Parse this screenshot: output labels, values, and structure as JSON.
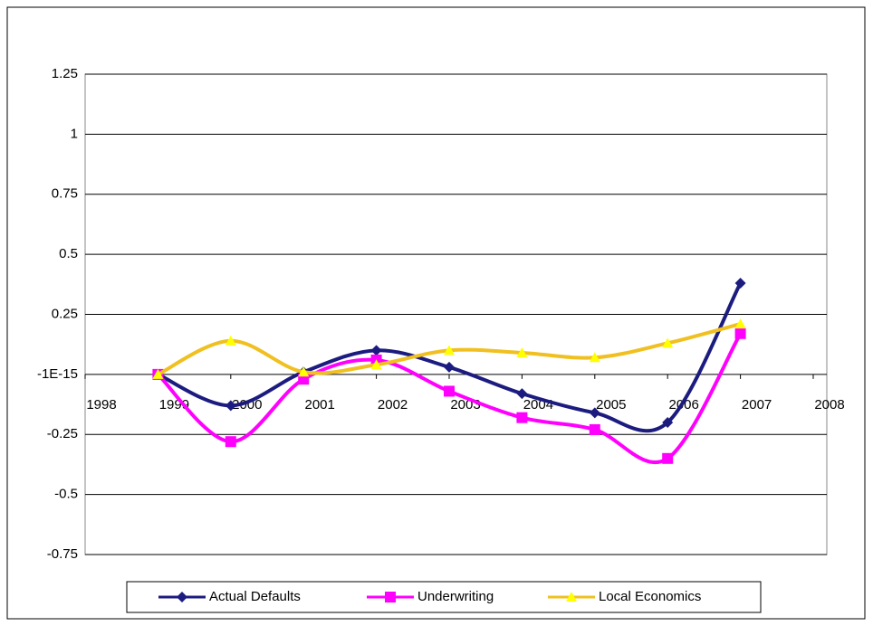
{
  "chart_data": {
    "type": "line",
    "x": [
      1999,
      2000,
      2001,
      2002,
      2003,
      2004,
      2005,
      2006,
      2007
    ],
    "series": [
      {
        "name": "Actual Defaults",
        "color": "#1c1c80",
        "marker": "diamond",
        "values": [
          0,
          -0.13,
          0.01,
          0.1,
          0.03,
          -0.08,
          -0.16,
          -0.2,
          0.38
        ]
      },
      {
        "name": "Underwriting",
        "color": "#ff00ff",
        "marker": "square",
        "values": [
          0,
          -0.28,
          -0.02,
          0.06,
          -0.07,
          -0.18,
          -0.23,
          -0.35,
          0.17
        ]
      },
      {
        "name": "Local Economics",
        "color": "#f0c020",
        "marker": "triangle",
        "values": [
          0,
          0.14,
          0.01,
          0.04,
          0.1,
          0.09,
          0.07,
          0.13,
          0.21
        ]
      }
    ],
    "xlim": [
      1998,
      2008
    ],
    "xticks": [
      1998,
      1999,
      2000,
      2001,
      2002,
      2003,
      2004,
      2005,
      2006,
      2007,
      2008
    ],
    "ylim": [
      -0.75,
      1.25
    ],
    "yticks": [
      -0.75,
      -0.5,
      -0.25,
      {
        "value": 0,
        "label": "-1E-15"
      },
      0.25,
      0.5,
      0.75,
      1,
      1.25
    ],
    "grid": true,
    "legend": "bottom"
  }
}
